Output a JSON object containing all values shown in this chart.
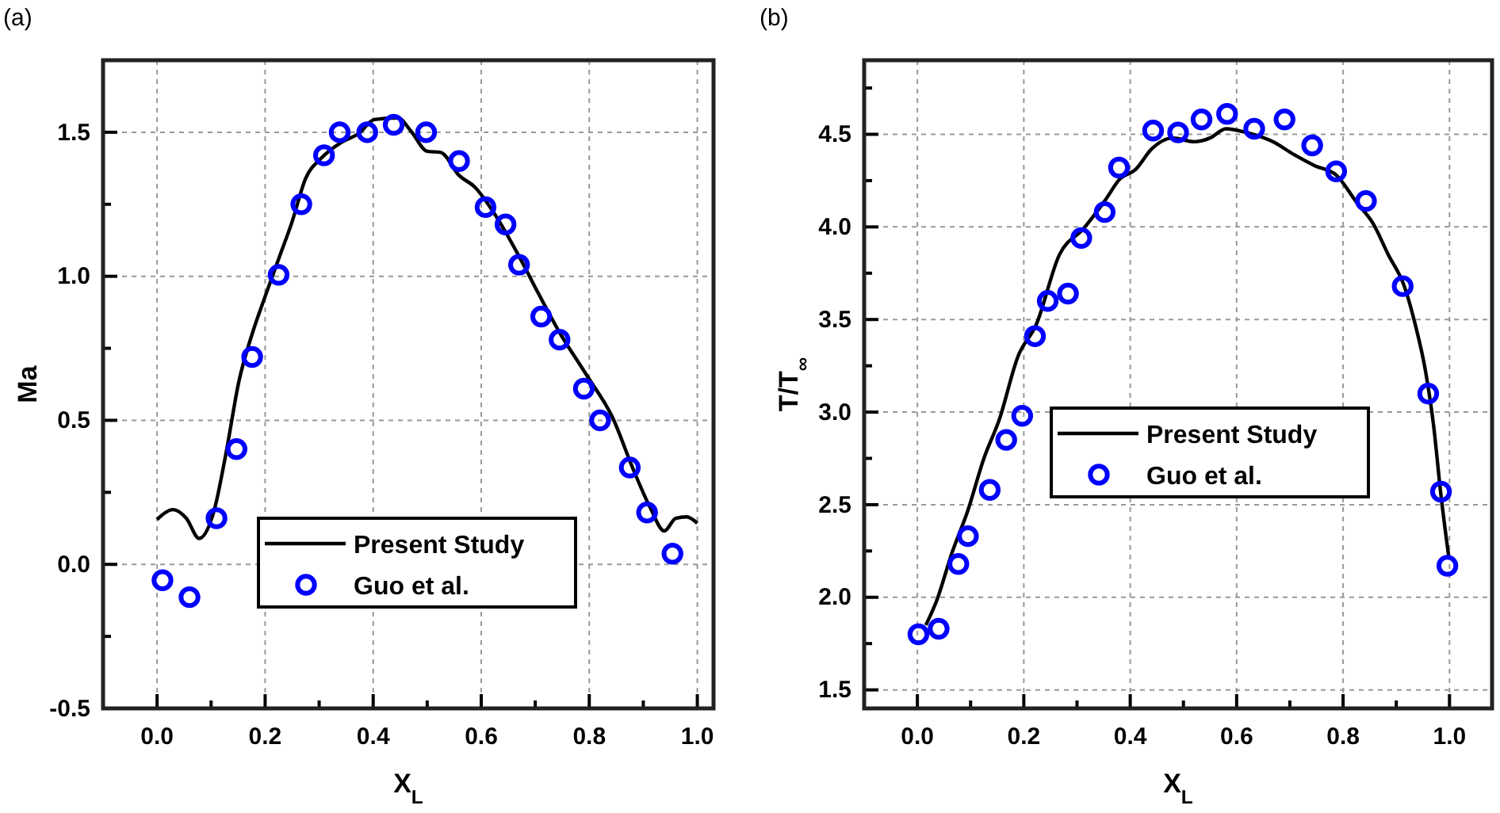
{
  "chart_data": [
    {
      "type": "line",
      "title": "(a)",
      "xlabel": "X$_{L}$",
      "ylabel": "Ma",
      "xlim": [
        -0.1,
        1.03
      ],
      "ylim": [
        -0.5,
        1.75
      ],
      "xticks": [
        {
          "value": 0,
          "label": "0.0"
        },
        {
          "value": 0.1,
          "label": null
        },
        {
          "value": 0.2,
          "label": "0.2"
        },
        {
          "value": 0.3,
          "label": null
        },
        {
          "value": 0.4,
          "label": "0.4"
        },
        {
          "value": 0.5,
          "label": null
        },
        {
          "value": 0.6,
          "label": "0.6"
        },
        {
          "value": 0.7,
          "label": null
        },
        {
          "value": 0.8,
          "label": "0.8"
        },
        {
          "value": 0.9,
          "label": null
        },
        {
          "value": 1,
          "label": "1.0"
        }
      ],
      "yticks": [
        {
          "value": -0.5,
          "label": "-0.5"
        },
        {
          "value": -0.25,
          "label": null
        },
        {
          "value": 0,
          "label": "0.0"
        },
        {
          "value": 0.25,
          "label": null
        },
        {
          "value": 0.5,
          "label": "0.5"
        },
        {
          "value": 0.75,
          "label": null
        },
        {
          "value": 1,
          "label": "1.0"
        },
        {
          "value": 1.25,
          "label": null
        },
        {
          "value": 1.5,
          "label": "1.5"
        }
      ],
      "grid": true,
      "legend": "bottom",
      "series": [
        {
          "name": "Present Study",
          "color": "#000000",
          "marker": "none",
          "line_style": "solid",
          "x": [
            0,
            0.03,
            0.054,
            0.078,
            0.106,
            0.127,
            0.152,
            0.176,
            0.2,
            0.225,
            0.25,
            0.275,
            0.304,
            0.343,
            0.373,
            0.402,
            0.446,
            0.47,
            0.5,
            0.525,
            0.559,
            0.588,
            0.627,
            0.667,
            0.706,
            0.745,
            0.794,
            0.843,
            0.882,
            0.912,
            0.939,
            0.96,
            0.98,
            1.0
          ],
          "values": [
            0.156,
            0.19,
            0.16,
            0.09,
            0.19,
            0.38,
            0.64,
            0.8,
            0.93,
            1.06,
            1.19,
            1.34,
            1.41,
            1.467,
            1.495,
            1.544,
            1.55,
            1.504,
            1.434,
            1.43,
            1.35,
            1.31,
            1.21,
            1.08,
            0.94,
            0.805,
            0.66,
            0.51,
            0.327,
            0.2,
            0.116,
            0.16,
            0.165,
            0.143
          ]
        },
        {
          "name": "Guo et al.",
          "type": "scatter",
          "color": "#0000ff",
          "marker": "circle",
          "x": [
            0.01,
            0.06,
            0.11,
            0.147,
            0.176,
            0.225,
            0.267,
            0.309,
            0.338,
            0.389,
            0.438,
            0.498,
            0.559,
            0.608,
            0.645,
            0.67,
            0.711,
            0.745,
            0.79,
            0.82,
            0.875,
            0.907,
            0.954
          ],
          "values": [
            -0.055,
            -0.114,
            0.16,
            0.4,
            0.72,
            1.005,
            1.25,
            1.42,
            1.5,
            1.5,
            1.526,
            1.5,
            1.4,
            1.24,
            1.18,
            1.04,
            0.86,
            0.78,
            0.61,
            0.5,
            0.336,
            0.18,
            0.037
          ]
        }
      ]
    },
    {
      "type": "line",
      "title": "(b)",
      "xlabel": "X$_{L}$",
      "ylabel": "T/T$_{∞}$",
      "xlim": [
        -0.1,
        1.08
      ],
      "ylim": [
        1.4,
        4.9
      ],
      "xticks": [
        {
          "value": 0,
          "label": "0.0"
        },
        {
          "value": 0.1,
          "label": null
        },
        {
          "value": 0.2,
          "label": "0.2"
        },
        {
          "value": 0.3,
          "label": null
        },
        {
          "value": 0.4,
          "label": "0.4"
        },
        {
          "value": 0.5,
          "label": null
        },
        {
          "value": 0.6,
          "label": "0.6"
        },
        {
          "value": 0.7,
          "label": null
        },
        {
          "value": 0.8,
          "label": "0.8"
        },
        {
          "value": 0.9,
          "label": null
        },
        {
          "value": 1,
          "label": "1.0"
        }
      ],
      "yticks": [
        {
          "value": 1.5,
          "label": "1.5"
        },
        {
          "value": 1.75,
          "label": null
        },
        {
          "value": 2,
          "label": "2.0"
        },
        {
          "value": 2.25,
          "label": null
        },
        {
          "value": 2.5,
          "label": "2.5"
        },
        {
          "value": 2.75,
          "label": null
        },
        {
          "value": 3,
          "label": "3.0"
        },
        {
          "value": 3.25,
          "label": null
        },
        {
          "value": 3.5,
          "label": "3.5"
        },
        {
          "value": 3.75,
          "label": null
        },
        {
          "value": 4,
          "label": "4.0"
        },
        {
          "value": 4.25,
          "label": null
        },
        {
          "value": 4.5,
          "label": "4.5"
        },
        {
          "value": 4.75,
          "label": null
        }
      ],
      "grid": true,
      "legend": "center",
      "series": [
        {
          "name": "Present Study",
          "color": "#000000",
          "marker": "none",
          "line_style": "solid",
          "x": [
            0.016,
            0.036,
            0.065,
            0.095,
            0.125,
            0.154,
            0.189,
            0.223,
            0.267,
            0.312,
            0.352,
            0.381,
            0.41,
            0.44,
            0.48,
            0.52,
            0.55,
            0.58,
            0.618,
            0.668,
            0.708,
            0.747,
            0.787,
            0.826,
            0.856,
            0.885,
            0.915,
            0.935,
            0.955,
            0.97,
            0.984,
            0.999
          ],
          "values": [
            1.85,
            1.98,
            2.24,
            2.47,
            2.75,
            2.96,
            3.3,
            3.47,
            3.85,
            3.99,
            4.14,
            4.26,
            4.31,
            4.42,
            4.48,
            4.46,
            4.48,
            4.53,
            4.51,
            4.46,
            4.39,
            4.33,
            4.28,
            4.13,
            4.02,
            3.85,
            3.68,
            3.48,
            3.22,
            2.93,
            2.55,
            2.21
          ]
        },
        {
          "name": "Guo et al.",
          "type": "scatter",
          "color": "#0000ff",
          "marker": "circle",
          "x": [
            0.002,
            0.04,
            0.077,
            0.095,
            0.136,
            0.167,
            0.197,
            0.221,
            0.245,
            0.283,
            0.308,
            0.352,
            0.379,
            0.443,
            0.49,
            0.534,
            0.582,
            0.633,
            0.69,
            0.742,
            0.787,
            0.843,
            0.912,
            0.96,
            0.984,
            0.996
          ],
          "values": [
            1.8,
            1.83,
            2.18,
            2.33,
            2.58,
            2.85,
            2.98,
            3.41,
            3.6,
            3.64,
            3.94,
            4.08,
            4.32,
            4.52,
            4.51,
            4.58,
            4.61,
            4.53,
            4.58,
            4.44,
            4.3,
            4.14,
            3.68,
            3.1,
            2.57,
            2.17
          ]
        }
      ]
    }
  ]
}
